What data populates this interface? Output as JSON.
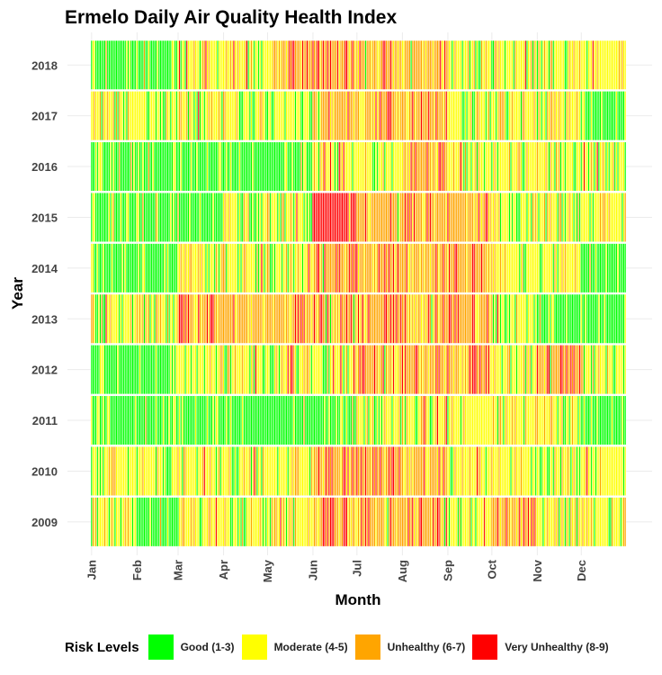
{
  "chart_data": {
    "type": "heatmap",
    "title": "Ermelo Daily Air Quality Health Index",
    "xlabel": "Month",
    "ylabel": "Year",
    "x_tick_labels": [
      "Jan",
      "Feb",
      "Mar",
      "Apr",
      "May",
      "Jun",
      "Jul",
      "Aug",
      "Sep",
      "Oct",
      "Nov",
      "Dec"
    ],
    "y_categories": [
      "2009",
      "2010",
      "2011",
      "2012",
      "2013",
      "2014",
      "2015",
      "2016",
      "2017",
      "2018"
    ],
    "legend": {
      "title": "Risk Levels",
      "position": "bottom",
      "items": [
        {
          "label": "Good (1-3)",
          "color": "#00FF00"
        },
        {
          "label": "Moderate (4-5)",
          "color": "#FFFF00"
        },
        {
          "label": "Unhealthy (6-7)",
          "color": "#FFA500"
        },
        {
          "label": "Very Unhealthy (8-9)",
          "color": "#FF0000"
        }
      ]
    },
    "grid": true,
    "monthly_dominant_level": {
      "2009": [
        "Moderate (4-5)",
        "Good (1-3)",
        "Moderate (4-5)",
        "Moderate (4-5)",
        "Moderate (4-5)",
        "Unhealthy (6-7)",
        "Unhealthy (6-7)",
        "Unhealthy (6-7)",
        "Moderate (4-5)",
        "Unhealthy (6-7)",
        "Moderate (4-5)",
        "Moderate (4-5)"
      ],
      "2010": [
        "Moderate (4-5)",
        "Moderate (4-5)",
        "Moderate (4-5)",
        "Moderate (4-5)",
        "Moderate (4-5)",
        "Unhealthy (6-7)",
        "Unhealthy (6-7)",
        "Unhealthy (6-7)",
        "Moderate (4-5)",
        "Moderate (4-5)",
        "Moderate (4-5)",
        "Moderate (4-5)"
      ],
      "2011": [
        "Good (1-3)",
        "Good (1-3)",
        "Good (1-3)",
        "Good (1-3)",
        "Good (1-3)",
        "Good (1-3)",
        "Moderate (4-5)",
        "Moderate (4-5)",
        "Moderate (4-5)",
        "Moderate (4-5)",
        "Moderate (4-5)",
        "Good (1-3)"
      ],
      "2012": [
        "Good (1-3)",
        "Good (1-3)",
        "Moderate (4-5)",
        "Moderate (4-5)",
        "Moderate (4-5)",
        "Moderate (4-5)",
        "Unhealthy (6-7)",
        "Unhealthy (6-7)",
        "Unhealthy (6-7)",
        "Moderate (4-5)",
        "Unhealthy (6-7)",
        "Moderate (4-5)"
      ],
      "2013": [
        "Moderate (4-5)",
        "Moderate (4-5)",
        "Unhealthy (6-7)",
        "Unhealthy (6-7)",
        "Unhealthy (6-7)",
        "Unhealthy (6-7)",
        "Unhealthy (6-7)",
        "Unhealthy (6-7)",
        "Unhealthy (6-7)",
        "Moderate (4-5)",
        "Good (1-3)",
        "Good (1-3)"
      ],
      "2014": [
        "Good (1-3)",
        "Good (1-3)",
        "Moderate (4-5)",
        "Moderate (4-5)",
        "Moderate (4-5)",
        "Unhealthy (6-7)",
        "Unhealthy (6-7)",
        "Unhealthy (6-7)",
        "Unhealthy (6-7)",
        "Moderate (4-5)",
        "Moderate (4-5)",
        "Good (1-3)"
      ],
      "2015": [
        "Good (1-3)",
        "Good (1-3)",
        "Good (1-3)",
        "Moderate (4-5)",
        "Moderate (4-5)",
        "Very Unhealthy (8-9)",
        "Unhealthy (6-7)",
        "Unhealthy (6-7)",
        "Unhealthy (6-7)",
        "Moderate (4-5)",
        "Moderate (4-5)",
        "Moderate (4-5)"
      ],
      "2016": [
        "Good (1-3)",
        "Good (1-3)",
        "Good (1-3)",
        "Good (1-3)",
        "Good (1-3)",
        "Moderate (4-5)",
        "Moderate (4-5)",
        "Unhealthy (6-7)",
        "Moderate (4-5)",
        "Moderate (4-5)",
        "Moderate (4-5)",
        "Moderate (4-5)"
      ],
      "2017": [
        "Moderate (4-5)",
        "Moderate (4-5)",
        "Moderate (4-5)",
        "Moderate (4-5)",
        "Moderate (4-5)",
        "Unhealthy (6-7)",
        "Unhealthy (6-7)",
        "Unhealthy (6-7)",
        "Moderate (4-5)",
        "Moderate (4-5)",
        "Moderate (4-5)",
        "Good (1-3)"
      ],
      "2018": [
        "Good (1-3)",
        "Good (1-3)",
        "Moderate (4-5)",
        "Moderate (4-5)",
        "Unhealthy (6-7)",
        "Unhealthy (6-7)",
        "Unhealthy (6-7)",
        "Unhealthy (6-7)",
        "Moderate (4-5)",
        "Moderate (4-5)",
        "Moderate (4-5)",
        "Moderate (4-5)"
      ]
    }
  }
}
